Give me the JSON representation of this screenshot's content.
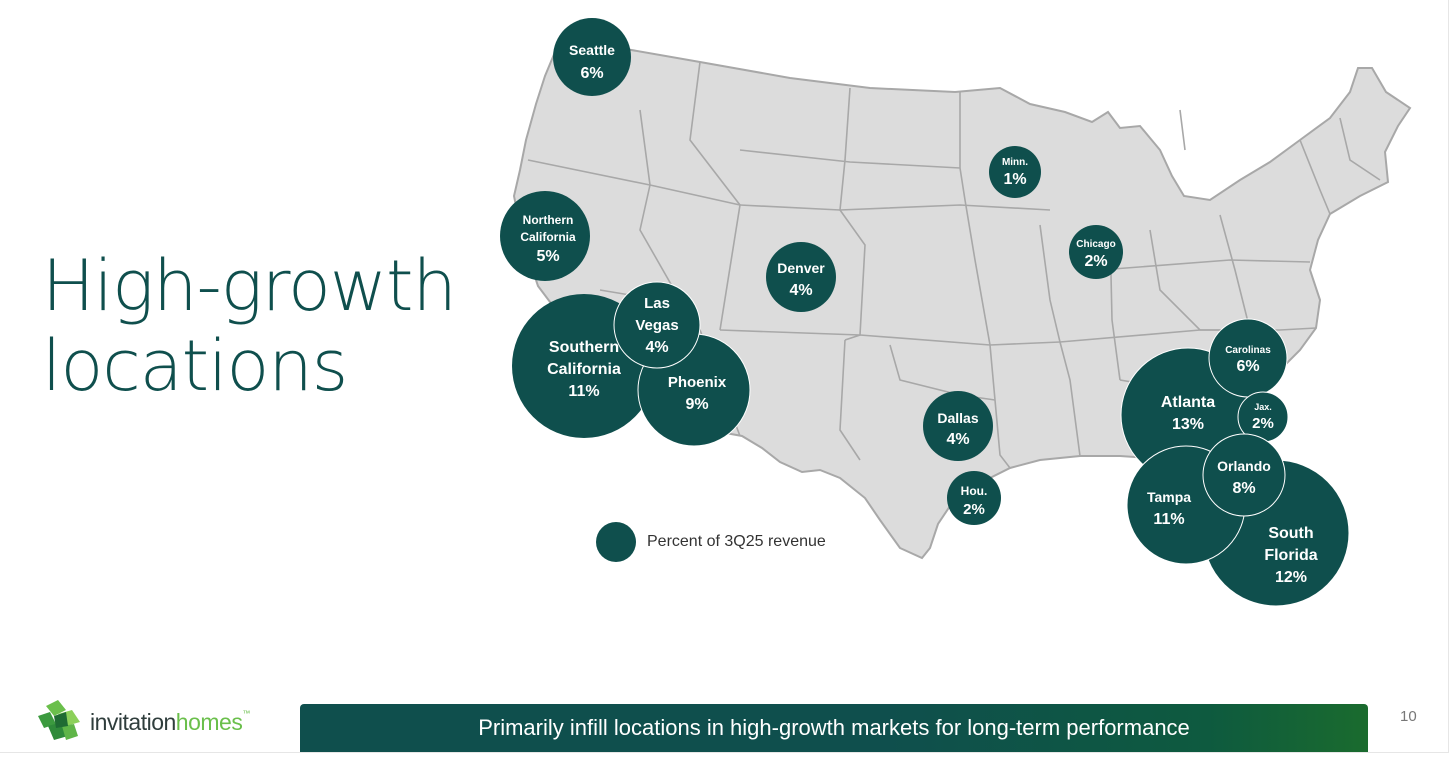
{
  "title": {
    "line1": "High-growth",
    "line2": "locations"
  },
  "legend": {
    "label": "Percent of 3Q25 revenue"
  },
  "markets": [
    {
      "id": "seattle",
      "name": [
        "Seattle"
      ],
      "value": "6%"
    },
    {
      "id": "northern-california",
      "name": [
        "Northern",
        "California"
      ],
      "value": "5%"
    },
    {
      "id": "southern-california",
      "name": [
        "Southern",
        "California"
      ],
      "value": "11%"
    },
    {
      "id": "las-vegas",
      "name": [
        "Las",
        "Vegas"
      ],
      "value": "4%"
    },
    {
      "id": "phoenix",
      "name": [
        "Phoenix"
      ],
      "value": "9%"
    },
    {
      "id": "denver",
      "name": [
        "Denver"
      ],
      "value": "4%"
    },
    {
      "id": "minneapolis",
      "name": [
        "Minn."
      ],
      "value": "1%"
    },
    {
      "id": "chicago",
      "name": [
        "Chicago"
      ],
      "value": "2%"
    },
    {
      "id": "dallas",
      "name": [
        "Dallas"
      ],
      "value": "4%"
    },
    {
      "id": "houston",
      "name": [
        "Hou."
      ],
      "value": "2%"
    },
    {
      "id": "atlanta",
      "name": [
        "Atlanta"
      ],
      "value": "13%"
    },
    {
      "id": "carolinas",
      "name": [
        "Carolinas"
      ],
      "value": "6%"
    },
    {
      "id": "jacksonville",
      "name": [
        "Jax."
      ],
      "value": "2%"
    },
    {
      "id": "south-florida",
      "name": [
        "South",
        "Florida"
      ],
      "value": "12%"
    },
    {
      "id": "tampa",
      "name": [
        "Tampa"
      ],
      "value": "11%"
    },
    {
      "id": "orlando",
      "name": [
        "Orlando"
      ],
      "value": "8%"
    }
  ],
  "footer": {
    "logo_part1": "invitation",
    "logo_part2": "homes",
    "logo_tm": "™",
    "tagline": "Primarily infill locations in high-growth markets for long-term performance",
    "page_number": "10"
  },
  "colors": {
    "bubble": "#0f4f4d",
    "map_fill": "#dcdcdc",
    "map_stroke": "#a8a8a8",
    "title": "#0f4f4d",
    "logo_green": "#6abf4b"
  }
}
